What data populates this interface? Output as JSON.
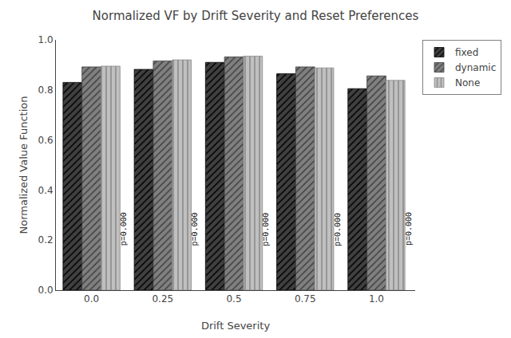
{
  "chart_data": {
    "type": "bar",
    "title": "Normalized VF by Drift Severity and Reset Preferences",
    "xlabel": "Drift Severity",
    "ylabel": "Normalized Value Function",
    "categories": [
      "0.0",
      "0.25",
      "0.5",
      "0.75",
      "1.0"
    ],
    "series": [
      {
        "name": "fixed",
        "color": "#404040",
        "values": [
          0.83,
          0.882,
          0.91,
          0.865,
          0.805
        ]
      },
      {
        "name": "dynamic",
        "color": "#808080",
        "values": [
          0.892,
          0.916,
          0.932,
          0.892,
          0.856
        ]
      },
      {
        "name": "None",
        "color": "#c0c0c0",
        "values": [
          0.895,
          0.92,
          0.935,
          0.888,
          0.838
        ]
      }
    ],
    "ylim": [
      0.0,
      1.0
    ],
    "yticks": [
      {
        "value": 0.0,
        "label": "0.0"
      },
      0.2,
      0.4,
      0.6,
      0.8,
      {
        "value": 1.0,
        "label": "1.0"
      }
    ],
    "annotations": [
      {
        "text": "p=0.000",
        "x": "0.0",
        "y": 0.17
      },
      {
        "text": "p=0.000",
        "x": "0.25",
        "y": 0.17
      },
      {
        "text": "p=0.000",
        "x": "0.5",
        "y": 0.17
      },
      {
        "text": "p=0.000",
        "x": "0.75",
        "y": 0.17
      },
      {
        "text": "p=0.000",
        "x": "1.0",
        "y": 0.17
      }
    ],
    "grid": false,
    "legend": "upper right"
  }
}
